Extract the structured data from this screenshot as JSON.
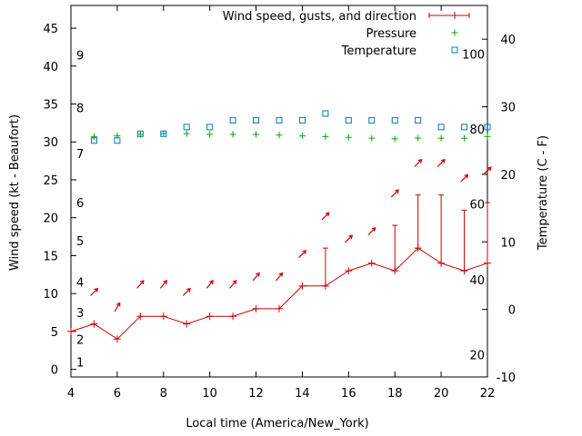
{
  "chart_data": {
    "type": "line",
    "xlabel": "Local time (America/New_York)",
    "ylabel": "Wind speed (kt - Beaufort)",
    "y2label": "Temperature (C - F)",
    "xlim": [
      4,
      22
    ],
    "ylim": [
      -1,
      48
    ],
    "y2lim": [
      -10,
      45
    ],
    "xticks": [
      4,
      6,
      8,
      10,
      12,
      14,
      16,
      18,
      20,
      22
    ],
    "yticks": [
      0,
      5,
      10,
      15,
      20,
      25,
      30,
      35,
      40,
      45
    ],
    "y2ticks": [
      -10,
      0,
      10,
      20,
      30,
      40
    ],
    "beaufort_labels": [
      {
        "label": "1",
        "y": 1
      },
      {
        "label": "2",
        "y": 4
      },
      {
        "label": "3",
        "y": 7.5
      },
      {
        "label": "4",
        "y": 11.5
      },
      {
        "label": "5",
        "y": 17
      },
      {
        "label": "6",
        "y": 22
      },
      {
        "label": "7",
        "y": 28.5
      },
      {
        "label": "8",
        "y": 34.5
      },
      {
        "label": "9",
        "y": 41.5
      }
    ],
    "fahrenheit_labels": [
      {
        "label": "20",
        "t": -6.7
      },
      {
        "label": "40",
        "t": 4.4
      },
      {
        "label": "60",
        "t": 15.6
      },
      {
        "label": "80",
        "t": 26.7
      },
      {
        "label": "100",
        "t": 37.8
      }
    ],
    "legend": {
      "position": "top-right",
      "entries": [
        "Wind speed, gusts, and direction",
        "Pressure",
        "Temperature"
      ]
    },
    "colors": {
      "wind": "#cc0000",
      "pressure": "#00aa00",
      "temperature": "#0077cc"
    },
    "series": [
      {
        "name": "Wind speed, gusts, and direction",
        "x": [
          4,
          5,
          6,
          7,
          8,
          9,
          10,
          11,
          12,
          13,
          14,
          15,
          16,
          17,
          18,
          19,
          20,
          21,
          22
        ],
        "values": [
          5,
          6,
          4,
          7,
          7,
          6,
          7,
          7,
          8,
          8,
          11,
          11,
          13,
          14,
          13,
          16,
          14,
          13,
          14
        ],
        "gusts": [
          null,
          null,
          null,
          null,
          null,
          null,
          null,
          null,
          null,
          null,
          null,
          16,
          null,
          null,
          19,
          23,
          23,
          21,
          22
        ]
      },
      {
        "name": "Pressure",
        "x": [
          5,
          6,
          7,
          8,
          9,
          10,
          11,
          12,
          13,
          14,
          15,
          16,
          17,
          18,
          19,
          20,
          21,
          22
        ],
        "values": [
          30.7,
          30.8,
          31.0,
          31.1,
          31.1,
          31.0,
          31.0,
          31.0,
          30.9,
          30.8,
          30.7,
          30.6,
          30.5,
          30.4,
          30.5,
          30.5,
          30.5,
          30.7
        ]
      },
      {
        "name": "Temperature",
        "x": [
          5,
          6,
          7,
          8,
          9,
          10,
          11,
          12,
          13,
          14,
          15,
          16,
          17,
          18,
          19,
          20,
          21,
          22
        ],
        "values": [
          25,
          25,
          26,
          26,
          27,
          27,
          28,
          28,
          28,
          28,
          29,
          28,
          28,
          28,
          28,
          27,
          27,
          27
        ]
      }
    ],
    "wind_direction": {
      "x": [
        5,
        6,
        7,
        8,
        9,
        10,
        11,
        12,
        13,
        14,
        15,
        16,
        17,
        18,
        19,
        20,
        21,
        22
      ],
      "y": [
        10.2,
        8.2,
        11.2,
        11.2,
        10.2,
        11.2,
        11.2,
        12.2,
        12.2,
        15.2,
        20.2,
        17.2,
        18.2,
        23.2,
        27.2,
        27.2,
        25.2,
        26.2
      ],
      "angle_deg": [
        45,
        60,
        50,
        50,
        45,
        50,
        50,
        50,
        50,
        45,
        45,
        45,
        45,
        45,
        45,
        45,
        45,
        45
      ]
    }
  }
}
